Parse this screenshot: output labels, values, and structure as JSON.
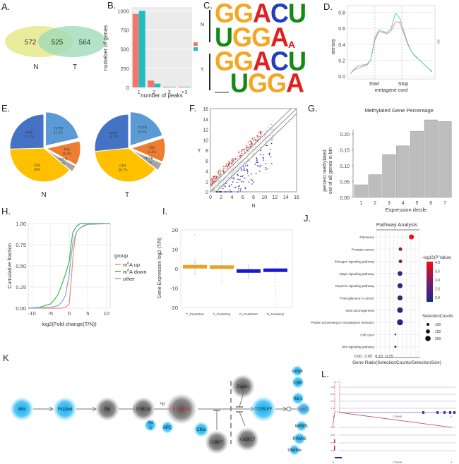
{
  "figure": {
    "panel_labels": [
      "A.",
      "B.",
      "C.",
      "D.",
      "E.",
      "F.",
      "G.",
      "H.",
      "I.",
      "J.",
      "K",
      "L."
    ]
  },
  "chart_data": [
    {
      "id": "A",
      "type": "venn",
      "sets": [
        {
          "name": "N",
          "only": 572,
          "color": "#e8e98a"
        },
        {
          "name": "T",
          "only": 564,
          "color": "#9fdcb8"
        }
      ],
      "overlap": 525
    },
    {
      "id": "B",
      "type": "bar",
      "categories": [
        "1",
        "2",
        "3",
        ">3"
      ],
      "series": [
        {
          "name": "N",
          "values": [
            960,
            90,
            10,
            10
          ],
          "color": "#f0776f"
        },
        {
          "name": "T",
          "values": [
            1000,
            50,
            8,
            8
          ],
          "color": "#1fbfc1"
        }
      ],
      "xlabel": "number of peaks",
      "ylabel": "numeber of genes",
      "yticks": [
        0,
        250,
        500,
        750,
        1000
      ],
      "ylim": [
        0,
        1050
      ],
      "legend": "right"
    },
    {
      "id": "C",
      "type": "sequence-logo",
      "groups": [
        {
          "name": "N",
          "motifs": [
            "GGACU",
            "UGGAC"
          ]
        },
        {
          "name": "T",
          "motifs": [
            "GGACU",
            "UGGA"
          ]
        }
      ],
      "colors": {
        "G": "#f5a623",
        "A": "#e02020",
        "C": "#1f3fc4",
        "U": "#148a14"
      }
    },
    {
      "id": "D",
      "type": "line",
      "xlabel": "metagene cord",
      "ylabel": "density",
      "xticks": [
        "Start",
        "Stop"
      ],
      "yticks": [
        0.0,
        0.2,
        0.4,
        0.6,
        0.8
      ],
      "ylim": [
        0,
        0.85
      ],
      "x": [
        0,
        0.05,
        0.1,
        0.15,
        0.2,
        0.25,
        0.3,
        0.35,
        0.4,
        0.45,
        0.5,
        0.55,
        0.6,
        0.65,
        0.7,
        0.75,
        0.8,
        0.85,
        0.9,
        0.95,
        1.0
      ],
      "series": [
        {
          "name": "N",
          "color": "#f08b84",
          "values": [
            0.03,
            0.09,
            0.13,
            0.14,
            0.15,
            0.2,
            0.45,
            0.56,
            0.55,
            0.53,
            0.57,
            0.68,
            0.68,
            0.55,
            0.4,
            0.3,
            0.24,
            0.2,
            0.15,
            0.1,
            0.05
          ]
        },
        {
          "name": "T",
          "color": "#5ccfd0",
          "values": [
            0.03,
            0.08,
            0.1,
            0.12,
            0.13,
            0.2,
            0.48,
            0.58,
            0.56,
            0.55,
            0.6,
            0.79,
            0.74,
            0.58,
            0.42,
            0.3,
            0.25,
            0.2,
            0.15,
            0.1,
            0.06
          ]
        }
      ],
      "legend": "right"
    },
    {
      "id": "E",
      "type": "pie",
      "charts": [
        {
          "name": "N",
          "slices": [
            {
              "label": "5'UTR",
              "value": 21.2,
              "color": "#5b9bd5"
            },
            {
              "label": "TSS",
              "value": 11.6,
              "color": "#ed7d31"
            },
            {
              "label": "3'UTR",
              "value": 3.0,
              "color": "#a5a5a5"
            },
            {
              "label": "CDS",
              "value": 38.0,
              "color": "#ffc000"
            },
            {
              "label": "stopC",
              "value": 25.2,
              "color": "#4472c4"
            }
          ]
        },
        {
          "name": "T",
          "slices": [
            {
              "label": "5'UTR",
              "value": 19.4,
              "color": "#5b9bd5"
            },
            {
              "label": "TSS",
              "value": 11.2,
              "color": "#ed7d31"
            },
            {
              "label": "3'UTR",
              "value": 3.7,
              "color": "#a5a5a5"
            },
            {
              "label": "CDS",
              "value": 36.7,
              "color": "#ffc000"
            },
            {
              "label": "stopC",
              "value": 25.7,
              "color": "#4472c4"
            }
          ]
        }
      ]
    },
    {
      "id": "F",
      "type": "scatter",
      "xlabel": "N",
      "ylabel": "T",
      "xlim": [
        0,
        16
      ],
      "ylim": [
        0,
        16
      ],
      "xticks": [
        0,
        2,
        4,
        6,
        8,
        10,
        12,
        14,
        16
      ],
      "yticks": [
        0,
        2,
        4,
        6,
        8,
        10,
        12,
        14,
        16
      ],
      "series": [
        {
          "name": "up",
          "color": "#d03030"
        },
        {
          "name": "down",
          "color": "#2a2ab0"
        },
        {
          "name": "other",
          "color": "#c8c8c8"
        }
      ]
    },
    {
      "id": "G",
      "type": "bar",
      "title": "Methylated Gene Percentage",
      "categories": [
        "1",
        "2",
        "3",
        "4",
        "5",
        "6",
        "7"
      ],
      "values": [
        0.04,
        0.072,
        0.135,
        0.163,
        0.209,
        0.245,
        0.24
      ],
      "xlabel": "Expression decile",
      "ylabel": "percent methylated\nout of all genes in bin",
      "yticks": [
        "0.00",
        "0.05",
        "0.10",
        "0.15",
        "0.20"
      ],
      "ylim": [
        0,
        0.245
      ],
      "color": "#bdbdbd"
    },
    {
      "id": "H",
      "type": "line",
      "xlabel": "log2(Fold change(T/N))",
      "ylabel": "Cumulative fraction",
      "xticks": [
        "-10",
        "-5",
        "0",
        "5",
        "10"
      ],
      "yticks": [
        "0.00",
        "0.25",
        "0.50",
        "0.75",
        "1.00"
      ],
      "xlim": [
        -11,
        11
      ],
      "ylim": [
        0,
        1
      ],
      "legend_title": "group",
      "series": [
        {
          "name": "m6A up",
          "color": "#f08b84",
          "x": [
            -11,
            -2,
            -1,
            0,
            0.5,
            1,
            1.5,
            2,
            3,
            4,
            6,
            11
          ],
          "values": [
            0,
            0,
            0.01,
            0.05,
            0.3,
            0.6,
            0.8,
            0.9,
            0.95,
            0.98,
            1.0,
            1.0
          ]
        },
        {
          "name": "m6A down",
          "color": "#3cb843",
          "x": [
            -11,
            -8,
            -5,
            -4,
            -3,
            -2,
            -1,
            0,
            0.5,
            1,
            2,
            3,
            11
          ],
          "values": [
            0,
            0.01,
            0.05,
            0.1,
            0.16,
            0.28,
            0.4,
            0.55,
            0.75,
            0.9,
            0.97,
            1.0,
            1.0
          ]
        },
        {
          "name": "other",
          "color": "#7fa7e0",
          "x": [
            -11,
            -5,
            -3,
            -2,
            -1,
            0,
            0.5,
            1,
            2,
            3,
            5,
            11
          ],
          "values": [
            0,
            0.01,
            0.03,
            0.07,
            0.15,
            0.4,
            0.6,
            0.78,
            0.9,
            0.95,
            0.99,
            1.0
          ]
        }
      ]
    },
    {
      "id": "I",
      "type": "box",
      "ylabel": "Gene Expression log2 (T/N)",
      "yticks": [
        "20",
        "10",
        "0",
        "-10",
        "-20"
      ],
      "ylim": [
        -20,
        20
      ],
      "categories": [
        "T_PeakStart",
        "T_PeakStop",
        "N_PeakStart",
        "N_Peakstop"
      ],
      "medians": [
        1,
        0.8,
        -1.2,
        -0.8
      ],
      "colors": [
        "#e8a22a",
        "#e8a22a",
        "#1a1acc",
        "#1a1acc"
      ]
    },
    {
      "id": "J",
      "type": "scatter",
      "title": "Pathway Analysis",
      "xlabel": "Gene Ratio(SelectionCounts/SelectionSize)",
      "xticks": [
        "0.00",
        "0.05",
        "0.10",
        "0.15"
      ],
      "xlim": [
        0,
        0.18
      ],
      "categories": [
        "Ribosome",
        "Prostate cancer",
        "Extrogen signaling pathway",
        "Hippo signaling pathway",
        "Oxytocin signaling pathway",
        "Proteoglycans in cancer",
        "Viral carcinogenesis",
        "Protein processing in endoplasmic reticulum",
        "Cell cycle",
        "Wnt signaling pathway"
      ],
      "gene_ratio": [
        0.155,
        0.102,
        0.102,
        0.1,
        0.1,
        0.1,
        0.1,
        0.1,
        0.078,
        0.078
      ],
      "neg_log10_p": [
        4.0,
        3.0,
        2.9,
        1.9,
        1.9,
        1.9,
        1.8,
        1.8,
        1.7,
        1.7
      ],
      "counts": [
        170,
        120,
        120,
        160,
        170,
        170,
        190,
        200,
        60,
        70
      ],
      "color_legend": {
        "title": "-log10(P Value)",
        "ticks": [
          "4.0",
          "3.5",
          "3.0",
          "2.5",
          "2.0"
        ]
      },
      "size_legend": {
        "title": "SelectionCounts",
        "ticks": [
          "100",
          "150",
          "200"
        ]
      }
    }
  ],
  "pathway_K": {
    "nodes": [
      {
        "label": "Wnt",
        "kind": "blue"
      },
      {
        "label": "Frizzled",
        "kind": "blue"
      },
      {
        "label": "Dvl",
        "kind": "gray"
      },
      {
        "label": "GSK-3β",
        "kind": "gray"
      },
      {
        "label": "Axi\nn",
        "kind": "blue"
      },
      {
        "label": "APC",
        "kind": "blue"
      },
      {
        "label": "β-catenin",
        "kind": "gray",
        "highlight": true
      },
      {
        "label": "CKIα",
        "kind": "blue"
      },
      {
        "label": "ICANT",
        "kind": "gray"
      },
      {
        "label": "Duplin",
        "kind": "gray"
      },
      {
        "label": "xSOX17",
        "kind": "gray"
      },
      {
        "label": "TCF/LEF",
        "kind": "blue"
      },
      {
        "label": "c-myc",
        "kind": "blue"
      },
      {
        "label": "c-jun",
        "kind": "blue"
      },
      {
        "label": "fra-1",
        "kind": "blue"
      },
      {
        "label": "cycD",
        "kind": "blue",
        "highlight": true
      },
      {
        "label": "WISP1",
        "kind": "blue"
      },
      {
        "label": "PPARδ",
        "kind": "blue"
      },
      {
        "label": "Uterine",
        "kind": "blue"
      }
    ],
    "phospho_label": "+p"
  },
  "tracks_L": {
    "top_tracks": [
      "2N IP",
      "5N IP",
      "2T IP",
      "5T IP"
    ],
    "bottom_tracks": [
      "2N IP",
      "5N IP",
      "2T IP",
      "5T IP"
    ],
    "gene": "CTNNB1",
    "axis_left": "0",
    "axis_right": "0"
  },
  "colors": {
    "blue_glow": "#2ab4ee",
    "gray_glow": "#5a5a5a",
    "highlight_red": "#e8202a"
  }
}
